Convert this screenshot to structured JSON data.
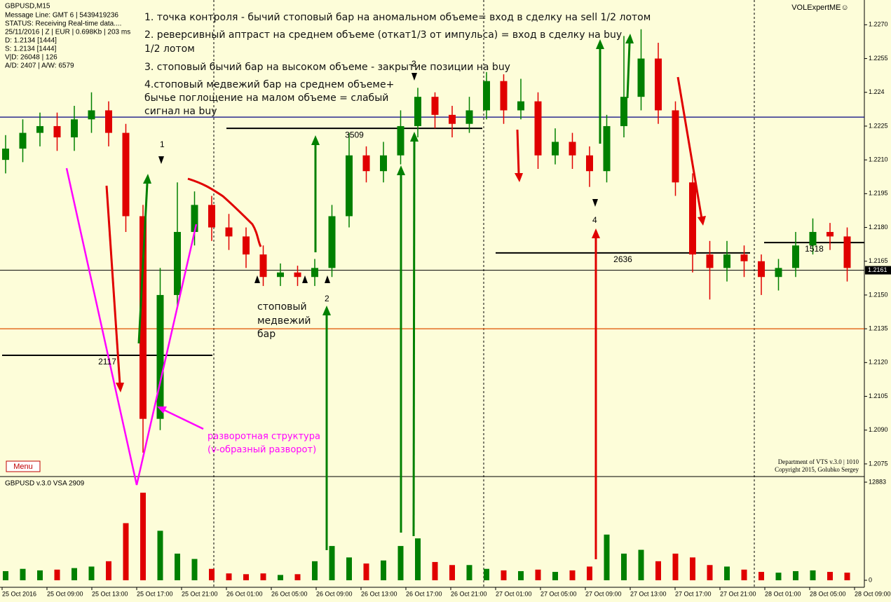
{
  "chart_data": {
    "type": "candlestick",
    "title": "GBPUSD,M15",
    "info_lines": [
      "Message Line: GMT 6 | 5439419236",
      "STATUS:  Receiving Real-time data....",
      "25/11/2016 | Z | EUR | 0.698Kb | 203 ms",
      "D: 1.2134  [1444]",
      "S: 1.2134  [1444]",
      "V|D: 26048 | 126",
      "A/D: 2407 | A/W: 6579"
    ],
    "brand": "VOLExpertME☺",
    "credits": [
      "Department of VTS  v.3.0 | 1010",
      "Copyright 2015, Golubko Sergey"
    ],
    "menu": "Menu",
    "notes": [
      "1. точка контроля - бычий стоповый бар на аномальном объеме= вход в сделку на sell 1/2 лотом",
      "2. реверсивный аптраст на среднем объеме (откат1/3 от импульса) =  вход в сделку на buy",
      "1/2 лотом",
      "3. стоповый бычий бар на высоком объеме - закрытие позиции на buy",
      "4.стоповый медвежий бар на среднем объеме+",
      "бычье поглощение на малом объеме = слабый",
      "сигнал на buy"
    ],
    "markers": [
      "1",
      "2",
      "3",
      "4"
    ],
    "stop_bar_note": [
      "стоповый",
      "медвежий",
      "бар"
    ],
    "reversal_note": [
      "разворотная структура",
      "(v-образный разворот)"
    ],
    "x_labels": [
      "25 Oct 2016",
      "25 Oct 09:00",
      "25 Oct 13:00",
      "25 Oct 17:00",
      "25 Oct 21:00",
      "26 Oct 01:00",
      "26 Oct 05:00",
      "26 Oct 09:00",
      "26 Oct 13:00",
      "26 Oct 17:00",
      "26 Oct 21:00",
      "27 Oct 01:00",
      "27 Oct 05:00",
      "27 Oct 09:00",
      "27 Oct 13:00",
      "27 Oct 17:00",
      "27 Oct 21:00",
      "28 Oct 01:00",
      "28 Oct 05:00",
      "28 Oct 09:00"
    ],
    "open": [
      1.221,
      1.2215,
      1.2222,
      1.2225,
      1.222,
      1.2228,
      1.2232,
      1.2222,
      1.2185,
      1.2095,
      1.215,
      1.2178,
      1.219,
      1.218,
      1.2176,
      1.2168,
      1.2158,
      1.216,
      1.2158,
      1.2162,
      1.2185,
      1.2212,
      1.2205,
      1.2212,
      1.2225,
      1.2238,
      1.223,
      1.2226,
      1.2232,
      1.2245,
      1.2232,
      1.2236,
      1.2212,
      1.2218,
      1.2212,
      1.2205,
      1.2225,
      1.2238,
      1.2255,
      1.2232,
      1.22,
      1.2168,
      1.2162,
      1.2168,
      1.2165,
      1.2158,
      1.2162,
      1.2172,
      1.2178,
      1.2176
    ],
    "high": [
      1.2221,
      1.2228,
      1.2231,
      1.2231,
      1.2234,
      1.224,
      1.2236,
      1.2226,
      1.219,
      1.2162,
      1.22,
      1.2196,
      1.2194,
      1.2186,
      1.218,
      1.2172,
      1.2164,
      1.2163,
      1.2166,
      1.219,
      1.2222,
      1.2216,
      1.2218,
      1.2232,
      1.2242,
      1.224,
      1.2234,
      1.2238,
      1.2249,
      1.2248,
      1.2246,
      1.224,
      1.2224,
      1.2222,
      1.2216,
      1.223,
      1.2265,
      1.2268,
      1.2262,
      1.2236,
      1.2204,
      1.2174,
      1.2174,
      1.2172,
      1.2168,
      1.2166,
      1.2178,
      1.2184,
      1.2182,
      1.218
    ],
    "low": [
      1.2204,
      1.2209,
      1.2216,
      1.2214,
      1.2214,
      1.2222,
      1.2216,
      1.2178,
      1.208,
      1.209,
      1.2145,
      1.2172,
      1.2174,
      1.217,
      1.2162,
      1.2154,
      1.2154,
      1.2154,
      1.2154,
      1.2158,
      1.218,
      1.22,
      1.22,
      1.2208,
      1.222,
      1.2224,
      1.222,
      1.2222,
      1.2228,
      1.2226,
      1.2228,
      1.2206,
      1.2208,
      1.2206,
      1.2198,
      1.22,
      1.222,
      1.2232,
      1.2226,
      1.2194,
      1.216,
      1.2148,
      1.2156,
      1.2158,
      1.215,
      1.2152,
      1.2158,
      1.2168,
      1.217,
      1.2156
    ],
    "close": [
      1.2215,
      1.2222,
      1.2225,
      1.222,
      1.2228,
      1.2232,
      1.2222,
      1.2185,
      1.2095,
      1.215,
      1.2178,
      1.219,
      1.218,
      1.2176,
      1.2168,
      1.2158,
      1.216,
      1.2158,
      1.2162,
      1.2185,
      1.2212,
      1.2205,
      1.2212,
      1.2225,
      1.2238,
      1.223,
      1.2226,
      1.2232,
      1.2245,
      1.2232,
      1.2236,
      1.2212,
      1.2218,
      1.2212,
      1.2205,
      1.2225,
      1.2238,
      1.2255,
      1.2232,
      1.22,
      1.2168,
      1.2162,
      1.2168,
      1.2165,
      1.2158,
      1.2162,
      1.2172,
      1.2178,
      1.2176,
      1.2162
    ],
    "up_color": "#008000",
    "down_color": "#e00000",
    "ylim": [
      1.207,
      1.2281
    ],
    "yticks": [
      {
        "value": 1.227,
        "label": "1.2270"
      },
      1.2255,
      1.224,
      1.2225,
      {
        "value": 1.221,
        "label": "1.2210"
      },
      1.2195,
      {
        "value": 1.218,
        "label": "1.2180"
      },
      1.2165,
      {
        "value": 1.215,
        "label": "1.2150"
      },
      1.2135,
      {
        "value": 1.212,
        "label": "1.2120"
      },
      1.2105,
      {
        "value": 1.209,
        "label": "1.2090"
      },
      1.2075
    ],
    "current_price": 1.2161,
    "hlines": [
      {
        "price": 1.2229,
        "color": "#000080"
      },
      {
        "price": 1.2135,
        "color": "#e05000"
      }
    ],
    "levels": [
      {
        "label": "2117",
        "price": 1.21232
      },
      {
        "label": "3509",
        "price": 1.2224
      },
      {
        "label": "2636",
        "price": 1.21687
      },
      {
        "label": "1518",
        "price": 1.21733
      }
    ],
    "volume_title": "GBPUSD v.3.0 VSA 2909",
    "volume": [
      1200,
      1500,
      1300,
      1400,
      1600,
      1800,
      2500,
      7500,
      11500,
      6500,
      3500,
      2800,
      1500,
      900,
      800,
      900,
      700,
      800,
      2500,
      4500,
      3000,
      2200,
      2600,
      4500,
      5500,
      2400,
      2000,
      2000,
      1500,
      1300,
      1200,
      1400,
      1100,
      1300,
      1800,
      6000,
      3500,
      4000,
      2500,
      3500,
      3000,
      2000,
      1800,
      1400,
      1100,
      1000,
      1200,
      1300,
      1100,
      1000
    ],
    "vlim": [
      0,
      12883
    ],
    "vticks": [
      12883,
      0
    ]
  }
}
